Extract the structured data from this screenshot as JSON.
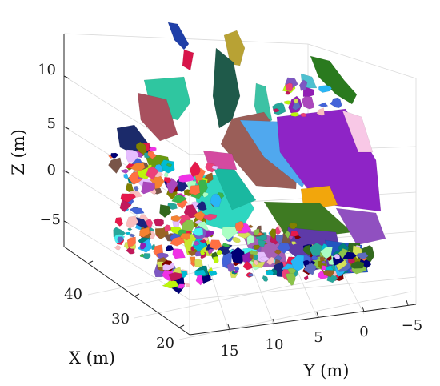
{
  "chart_data": {
    "type": "scatter",
    "title": "",
    "xlabel": "X (m)",
    "ylabel": "Y (m)",
    "zlabel": "Z (m)",
    "x_ticks": [
      "40",
      "30",
      "20"
    ],
    "y_ticks": [
      "15",
      "10",
      "5",
      "0",
      "−5"
    ],
    "z_ticks": [
      "10",
      "5",
      "0",
      "−5"
    ],
    "xlim": [
      17,
      48
    ],
    "ylim": [
      -7,
      17
    ],
    "zlim": [
      -10,
      14
    ],
    "grid": true,
    "legend": "none",
    "palette": [
      "#e6194b",
      "#3cb44b",
      "#4363d8",
      "#f58231",
      "#911eb4",
      "#46f0f0",
      "#f032e6",
      "#bcf60c",
      "#fabebe",
      "#008080",
      "#e6beff",
      "#9a6324",
      "#800000",
      "#aaffc3",
      "#808000",
      "#000075",
      "#8bc34a",
      "#ff7043",
      "#26a69a",
      "#5c6bc0",
      "#ab47bc",
      "#29b6f6",
      "#d4e157",
      "#ec407a",
      "#7e57c2",
      "#1a237e",
      "#33691e",
      "#795548",
      "#c2185b",
      "#00bcd4"
    ]
  }
}
